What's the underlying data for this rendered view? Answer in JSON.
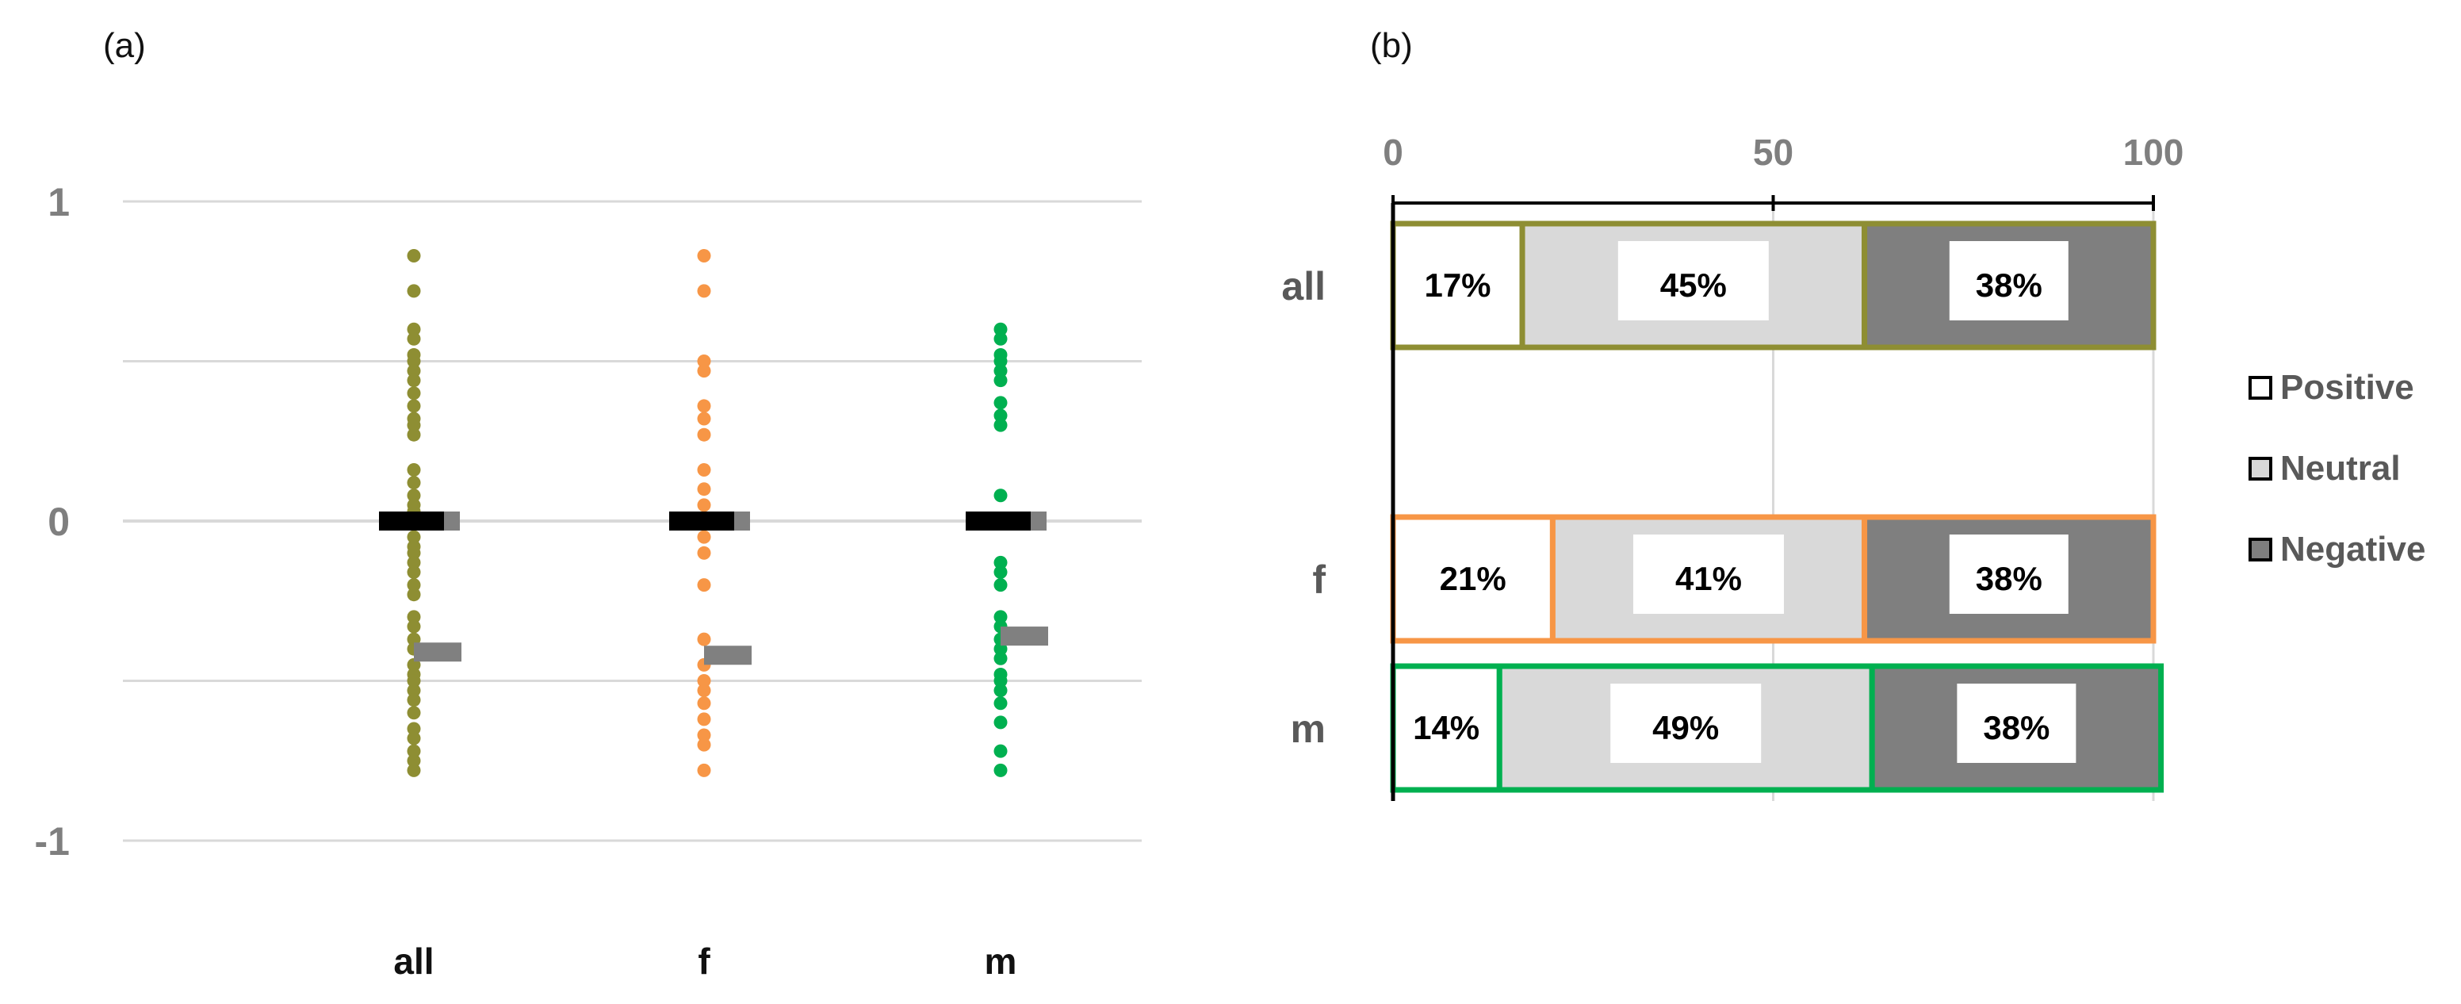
{
  "colors": {
    "all": "#8e8e33",
    "f": "#f79646",
    "m": "#00b050",
    "mean_bar": "#000000",
    "median_bar": "#808080",
    "positive": "#ffffff",
    "neutral": "#d9d9d9",
    "negative": "#7f7f7f",
    "grid": "#d9d9d9"
  },
  "chart_data": [
    {
      "panel": "(a)",
      "type": "scatter",
      "ylim": [
        -1,
        1
      ],
      "yticks": [
        "1",
        "0",
        "-1"
      ],
      "grid": true,
      "categories": [
        "all",
        "f",
        "m"
      ],
      "series": [
        {
          "category": "all",
          "values": [
            0.83,
            0.72,
            0.6,
            0.57,
            0.52,
            0.5,
            0.47,
            0.44,
            0.4,
            0.36,
            0.32,
            0.3,
            0.27,
            0.16,
            0.12,
            0.08,
            0.05,
            0.03,
            -0.05,
            -0.08,
            -0.1,
            -0.13,
            -0.16,
            -0.2,
            -0.23,
            -0.3,
            -0.33,
            -0.37,
            -0.4,
            -0.45,
            -0.48,
            -0.5,
            -0.53,
            -0.56,
            -0.6,
            -0.65,
            -0.68,
            -0.72,
            -0.75,
            -0.78
          ],
          "mean": 0.0,
          "median": -0.41
        },
        {
          "category": "f",
          "values": [
            0.83,
            0.72,
            0.5,
            0.47,
            0.36,
            0.32,
            0.27,
            0.16,
            0.1,
            0.05,
            -0.05,
            -0.1,
            -0.2,
            -0.37,
            -0.45,
            -0.5,
            -0.53,
            -0.57,
            -0.62,
            -0.67,
            -0.7,
            -0.78
          ],
          "mean": 0.0,
          "median": -0.42
        },
        {
          "category": "m",
          "values": [
            0.6,
            0.57,
            0.52,
            0.5,
            0.47,
            0.44,
            0.37,
            0.33,
            0.3,
            0.08,
            0.0,
            -0.13,
            -0.16,
            -0.2,
            -0.3,
            -0.33,
            -0.37,
            -0.4,
            -0.43,
            -0.48,
            -0.5,
            -0.53,
            -0.57,
            -0.63,
            -0.72,
            -0.78
          ],
          "mean": 0.0,
          "median": -0.36
        }
      ]
    },
    {
      "panel": "(b)",
      "type": "bar",
      "orientation": "horizontal",
      "stacked": true,
      "xlim": [
        0,
        100
      ],
      "xticks": [
        "0",
        "50",
        "100"
      ],
      "categories": [
        "all",
        "f",
        "m"
      ],
      "series": [
        {
          "name": "Positive",
          "values": [
            17,
            21,
            14
          ],
          "labels": [
            "17%",
            "21%",
            "14%"
          ]
        },
        {
          "name": "Neutral",
          "values": [
            45,
            41,
            49
          ],
          "labels": [
            "45%",
            "41%",
            "49%"
          ]
        },
        {
          "name": "Negative",
          "values": [
            38,
            38,
            38
          ],
          "labels": [
            "38%",
            "38%",
            "38%"
          ]
        }
      ],
      "legend": [
        "Positive",
        "Neutral",
        "Negative"
      ],
      "legend_position": "right"
    }
  ]
}
